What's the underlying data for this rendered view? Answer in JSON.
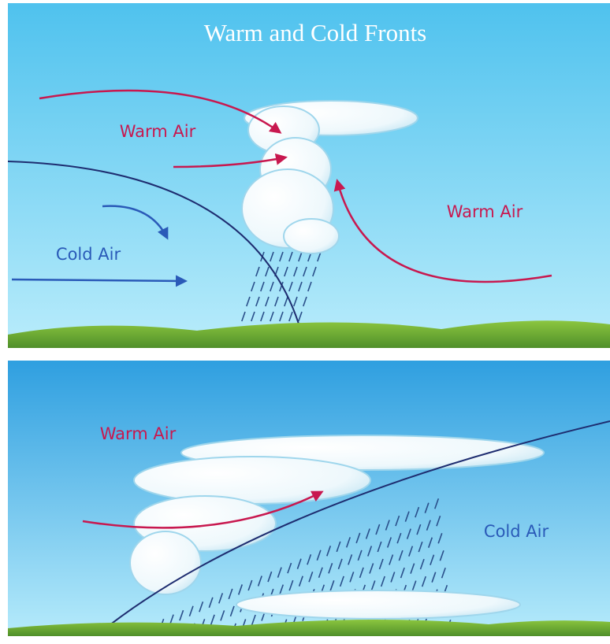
{
  "title": "Warm and Cold Fronts",
  "panels": [
    {
      "labels": [
        "Warm Air",
        "Warm Air",
        "Cold Air"
      ]
    },
    {
      "labels": [
        "Warm Air",
        "Cold Air"
      ]
    }
  ]
}
